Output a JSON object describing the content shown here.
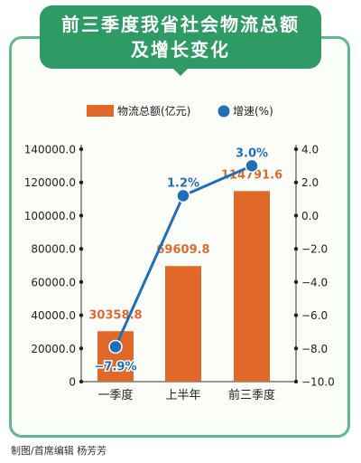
{
  "title_lines": [
    "前三季度我省社会物流总额",
    "及增长变化"
  ],
  "caption": "制图/首席编辑  杨芳芳",
  "colors": {
    "frame": "#5fb98a",
    "banner": "#2f9b64",
    "bar": "#e0692a",
    "line": "#1f6fb8",
    "bar_label": "#e0692a",
    "line_label": "#1f6fb8"
  },
  "chart_data": {
    "type": "bar",
    "categories": [
      "一季度",
      "上半年",
      "前三季度"
    ],
    "series": [
      {
        "name": "物流总额(亿元)",
        "type": "bar",
        "axis": "left",
        "values": [
          30358.8,
          69609.8,
          114791.6
        ],
        "labels": [
          "30358.8",
          "69609.8",
          "114791.6"
        ]
      },
      {
        "name": "增速(%)",
        "type": "line",
        "axis": "right",
        "values": [
          -7.9,
          1.2,
          3.0
        ],
        "labels": [
          "−7.9%",
          "1.2%",
          "3.0%"
        ]
      }
    ],
    "left_axis": {
      "ylim": [
        0,
        140000
      ],
      "ticks": [
        0,
        20000,
        40000,
        60000,
        80000,
        100000,
        120000,
        140000
      ],
      "tick_labels": [
        "0",
        "20000.0",
        "40000.0",
        "60000.0",
        "80000.0",
        "100000.0",
        "120000.0",
        "140000.0"
      ]
    },
    "right_axis": {
      "ylim": [
        -10,
        4
      ],
      "ticks": [
        -10,
        -8,
        -6,
        -4,
        -2,
        0,
        2,
        4
      ],
      "tick_labels": [
        "−10.0",
        "−8.0",
        "−6.0",
        "−4.0",
        "−2.0",
        "0.0",
        "2.0",
        "4.0"
      ]
    },
    "legend_position": "top-center",
    "grid": false
  }
}
